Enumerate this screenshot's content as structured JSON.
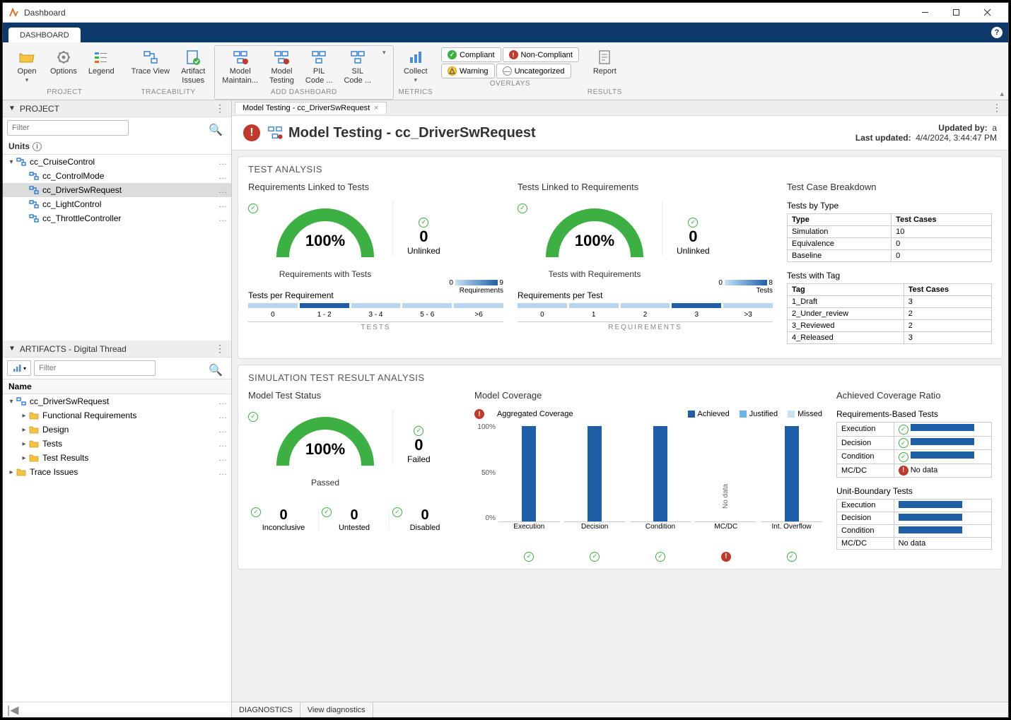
{
  "window": {
    "title": "Dashboard"
  },
  "tab": "DASHBOARD",
  "toolbar": {
    "groups": {
      "project": {
        "label": "PROJECT",
        "open": "Open",
        "options": "Options",
        "legend": "Legend"
      },
      "traceability": {
        "label": "TRACEABILITY",
        "trace_view": "Trace View",
        "artifact_issues": "Artifact\nIssues"
      },
      "add_dashboard": {
        "label": "ADD DASHBOARD",
        "model_maintain": "Model\nMaintain...",
        "model_testing": "Model\nTesting",
        "pil_code": "PIL\nCode ...",
        "sil_code": "SIL\nCode ..."
      },
      "metrics": {
        "label": "METRICS",
        "collect": "Collect"
      },
      "overlays": {
        "label": "OVERLAYS",
        "compliant": "Compliant",
        "non_compliant": "Non-Compliant",
        "warning": "Warning",
        "uncategorized": "Uncategorized"
      },
      "results": {
        "label": "RESULTS",
        "report": "Report"
      }
    }
  },
  "project_panel": {
    "title": "PROJECT",
    "filter_placeholder": "Filter",
    "units_label": "Units",
    "tree": {
      "root": "cc_CruiseControl",
      "children": [
        "cc_ControlMode",
        "cc_DriverSwRequest",
        "cc_LightControl",
        "cc_ThrottleController"
      ],
      "selected": "cc_DriverSwRequest"
    }
  },
  "artifacts_panel": {
    "title": "ARTIFACTS - Digital Thread",
    "filter_placeholder": "Filter",
    "name_col": "Name",
    "tree": {
      "root": "cc_DriverSwRequest",
      "children": [
        "Functional Requirements",
        "Design",
        "Tests",
        "Test Results"
      ],
      "trace_issues": "Trace Issues"
    }
  },
  "content": {
    "tab_label": "Model Testing - cc_DriverSwRequest",
    "header": {
      "title": "Model Testing - cc_DriverSwRequest",
      "updated_by_label": "Updated by:",
      "updated_by": "a",
      "last_updated_label": "Last updated:",
      "last_updated": "4/4/2024, 3:44:47 PM"
    },
    "test_analysis": {
      "title": "TEST ANALYSIS",
      "req_linked": {
        "title": "Requirements Linked to Tests",
        "gauge_pct": "100%",
        "gauge_label": "Requirements with Tests",
        "side_num": "0",
        "side_label": "Unlinked",
        "dist_title": "Tests per Requirement",
        "dist_categories": [
          "0",
          "1 - 2",
          "3 - 4",
          "5 - 6",
          ">6"
        ],
        "dist_values": [
          0,
          9,
          0,
          0,
          0
        ],
        "dist_max": 9,
        "dist_axis": "TESTS",
        "dist_unit": "Requirements",
        "colors": {
          "empty": "#b8d6ef",
          "filled": "#1f5fa8"
        }
      },
      "tests_linked": {
        "title": "Tests Linked to Requirements",
        "gauge_pct": "100%",
        "gauge_label": "Tests with Requirements",
        "side_num": "0",
        "side_label": "Unlinked",
        "dist_title": "Requirements per Test",
        "dist_categories": [
          "0",
          "1",
          "2",
          "3",
          ">3"
        ],
        "dist_values": [
          0,
          0,
          0,
          8,
          0
        ],
        "dist_max": 8,
        "dist_axis": "REQUIREMENTS",
        "dist_unit": "Tests",
        "colors": {
          "empty": "#b8d6ef",
          "filled": "#1f5fa8"
        }
      },
      "breakdown": {
        "title": "Test Case Breakdown",
        "by_type_title": "Tests by Type",
        "by_type_cols": [
          "Type",
          "Test Cases"
        ],
        "by_type_rows": [
          [
            "Simulation",
            "10"
          ],
          [
            "Equivalence",
            "0"
          ],
          [
            "Baseline",
            "0"
          ]
        ],
        "with_tag_title": "Tests with Tag",
        "with_tag_cols": [
          "Tag",
          "Test Cases"
        ],
        "with_tag_rows": [
          [
            "1_Draft",
            "3"
          ],
          [
            "2_Under_review",
            "2"
          ],
          [
            "3_Reviewed",
            "2"
          ],
          [
            "4_Released",
            "3"
          ]
        ]
      },
      "gauge": {
        "color": "#3cb043",
        "track": "#e6e6e6"
      }
    },
    "sim_analysis": {
      "title": "SIMULATION TEST RESULT ANALYSIS",
      "model_test_status": {
        "title": "Model Test Status",
        "gauge_pct": "100%",
        "gauge_label": "Passed",
        "stats": [
          {
            "num": "0",
            "label": "Failed"
          },
          {
            "num": "0",
            "label": "Inconclusive"
          },
          {
            "num": "0",
            "label": "Untested"
          },
          {
            "num": "0",
            "label": "Disabled"
          }
        ]
      },
      "model_coverage": {
        "title": "Model Coverage",
        "agg_label": "Aggregated Coverage",
        "legend": [
          {
            "label": "Achieved",
            "color": "#1f5fa8"
          },
          {
            "label": "Justified",
            "color": "#6db4e8"
          },
          {
            "label": "Missed",
            "color": "#c9e2f6"
          }
        ],
        "y_ticks": [
          "100%",
          "50%",
          "0%"
        ],
        "bars": [
          {
            "label": "Execution",
            "achieved": 100,
            "status": "ok"
          },
          {
            "label": "Decision",
            "achieved": 100,
            "status": "ok"
          },
          {
            "label": "Condition",
            "achieved": 100,
            "status": "ok"
          },
          {
            "label": "MC/DC",
            "achieved": 0,
            "nodata": true,
            "status": "error"
          },
          {
            "label": "Int.\nOverflow",
            "achieved": 100,
            "status": "ok"
          }
        ],
        "nodata_text": "No data"
      },
      "coverage_ratio": {
        "title": "Achieved Coverage Ratio",
        "req_based_title": "Requirements-Based Tests",
        "req_based_rows": [
          {
            "label": "Execution",
            "pct": 100,
            "status": "ok"
          },
          {
            "label": "Decision",
            "pct": 100,
            "status": "ok"
          },
          {
            "label": "Condition",
            "pct": 100,
            "status": "ok"
          },
          {
            "label": "MC/DC",
            "pct": 0,
            "status": "error",
            "text": "No data"
          }
        ],
        "unit_title": "Unit-Boundary Tests",
        "unit_rows": [
          {
            "label": "Execution",
            "pct": 100
          },
          {
            "label": "Decision",
            "pct": 100
          },
          {
            "label": "Condition",
            "pct": 100
          },
          {
            "label": "MC/DC",
            "pct": 0,
            "text": "No data"
          }
        ]
      }
    }
  },
  "statusbar": {
    "diagnostics": "DIAGNOSTICS",
    "view": "View diagnostics"
  }
}
